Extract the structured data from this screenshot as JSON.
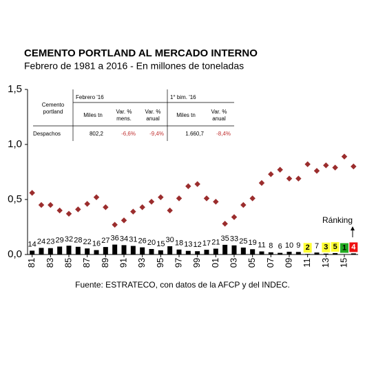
{
  "chart_data": {
    "type": "scatter",
    "title": "CEMENTO PORTLAND AL MERCADO INTERNO",
    "subtitle": "Febrero de 1981 a 2016 - En millones de toneladas",
    "source": "Fuente: ESTRATECO, con datos de la AFCP y del INDEC.",
    "annotation": "Ránking",
    "x": [
      1981,
      1982,
      1983,
      1984,
      1985,
      1986,
      1987,
      1988,
      1989,
      1990,
      1991,
      1992,
      1993,
      1994,
      1995,
      1996,
      1997,
      1998,
      1999,
      2000,
      2001,
      2002,
      2003,
      2004,
      2005,
      2006,
      2007,
      2008,
      2009,
      2010,
      2011,
      2012,
      2013,
      2014,
      2015,
      2016
    ],
    "xlim": [
      1980.5,
      2016.5
    ],
    "xticks": [
      {
        "value": 1981,
        "label": "81"
      },
      {
        "value": 1983,
        "label": "83"
      },
      {
        "value": 1985,
        "label": "85"
      },
      {
        "value": 1987,
        "label": "87"
      },
      {
        "value": 1989,
        "label": "89"
      },
      {
        "value": 1991,
        "label": "91"
      },
      {
        "value": 1993,
        "label": "93"
      },
      {
        "value": 1995,
        "label": "95"
      },
      {
        "value": 1997,
        "label": "97"
      },
      {
        "value": 1999,
        "label": "99"
      },
      {
        "value": 2001,
        "label": "01"
      },
      {
        "value": 2003,
        "label": "03"
      },
      {
        "value": 2005,
        "label": "05"
      },
      {
        "value": 2007,
        "label": "07"
      },
      {
        "value": 2009,
        "label": "09"
      },
      {
        "value": 2011,
        "label": "11"
      },
      {
        "value": 2013,
        "label": "13"
      },
      {
        "value": 2015,
        "label": "15"
      }
    ],
    "ylim": [
      0,
      1.5
    ],
    "yticks": [
      {
        "value": 0,
        "label": "0,0"
      },
      {
        "value": 0.5,
        "label": "0,5"
      },
      {
        "value": 1,
        "label": "1,0"
      },
      {
        "value": 1.5,
        "label": "1,5"
      }
    ],
    "series": [
      {
        "name": "Despachos",
        "color": "#9b2d2d",
        "values": [
          0.56,
          0.45,
          0.45,
          0.4,
          0.37,
          0.41,
          0.46,
          0.52,
          0.43,
          0.27,
          0.31,
          0.39,
          0.43,
          0.48,
          0.52,
          0.4,
          0.51,
          0.62,
          0.64,
          0.51,
          0.48,
          0.28,
          0.34,
          0.45,
          0.51,
          0.65,
          0.73,
          0.77,
          0.69,
          0.69,
          0.82,
          0.76,
          0.81,
          0.79,
          0.89,
          0.8
        ]
      },
      {
        "name": "Ránking",
        "type": "bar",
        "color": "#000000",
        "values": [
          0.035,
          0.06,
          0.058,
          0.072,
          0.08,
          0.07,
          0.055,
          0.04,
          0.068,
          0.09,
          0.085,
          0.078,
          0.065,
          0.05,
          0.038,
          0.075,
          0.045,
          0.033,
          0.03,
          0.043,
          0.053,
          0.088,
          0.083,
          0.063,
          0.048,
          0.028,
          0.02,
          0.015,
          0.025,
          0.023,
          0.005,
          0.018,
          0.008,
          0.013,
          0.003,
          0.01
        ]
      }
    ],
    "ranking": [
      "14",
      "24",
      "23",
      "29",
      "32",
      "28",
      "22",
      "16",
      "27",
      "36",
      "34",
      "31",
      "26",
      "20",
      "15",
      "30",
      "18",
      "13",
      "12",
      "17",
      "21",
      "35",
      "33",
      "25",
      "19",
      "11",
      "8",
      "6",
      "10",
      "9",
      "2",
      "7",
      "3",
      "5",
      "1",
      "4"
    ],
    "ranking_colors": [
      null,
      null,
      null,
      null,
      null,
      null,
      null,
      null,
      null,
      null,
      null,
      null,
      null,
      null,
      null,
      null,
      null,
      null,
      null,
      null,
      null,
      null,
      null,
      null,
      null,
      null,
      null,
      null,
      null,
      null,
      "#ffff33",
      null,
      "#ffff33",
      "#ffff33",
      "#22aa22",
      "#ee1111"
    ]
  },
  "table": {
    "row_head": "Cemento portland",
    "groups": [
      "Febrero '16",
      "1° bim. '16"
    ],
    "columns": [
      "Miles tn",
      "Var. % mens.",
      "Var. % anual",
      "Miles tn",
      "Var. % anual"
    ],
    "rows": [
      [
        "Despachos",
        "802,2",
        "-6,6%",
        "-9,4%",
        "1.660,7",
        "-8,4%"
      ]
    ]
  }
}
